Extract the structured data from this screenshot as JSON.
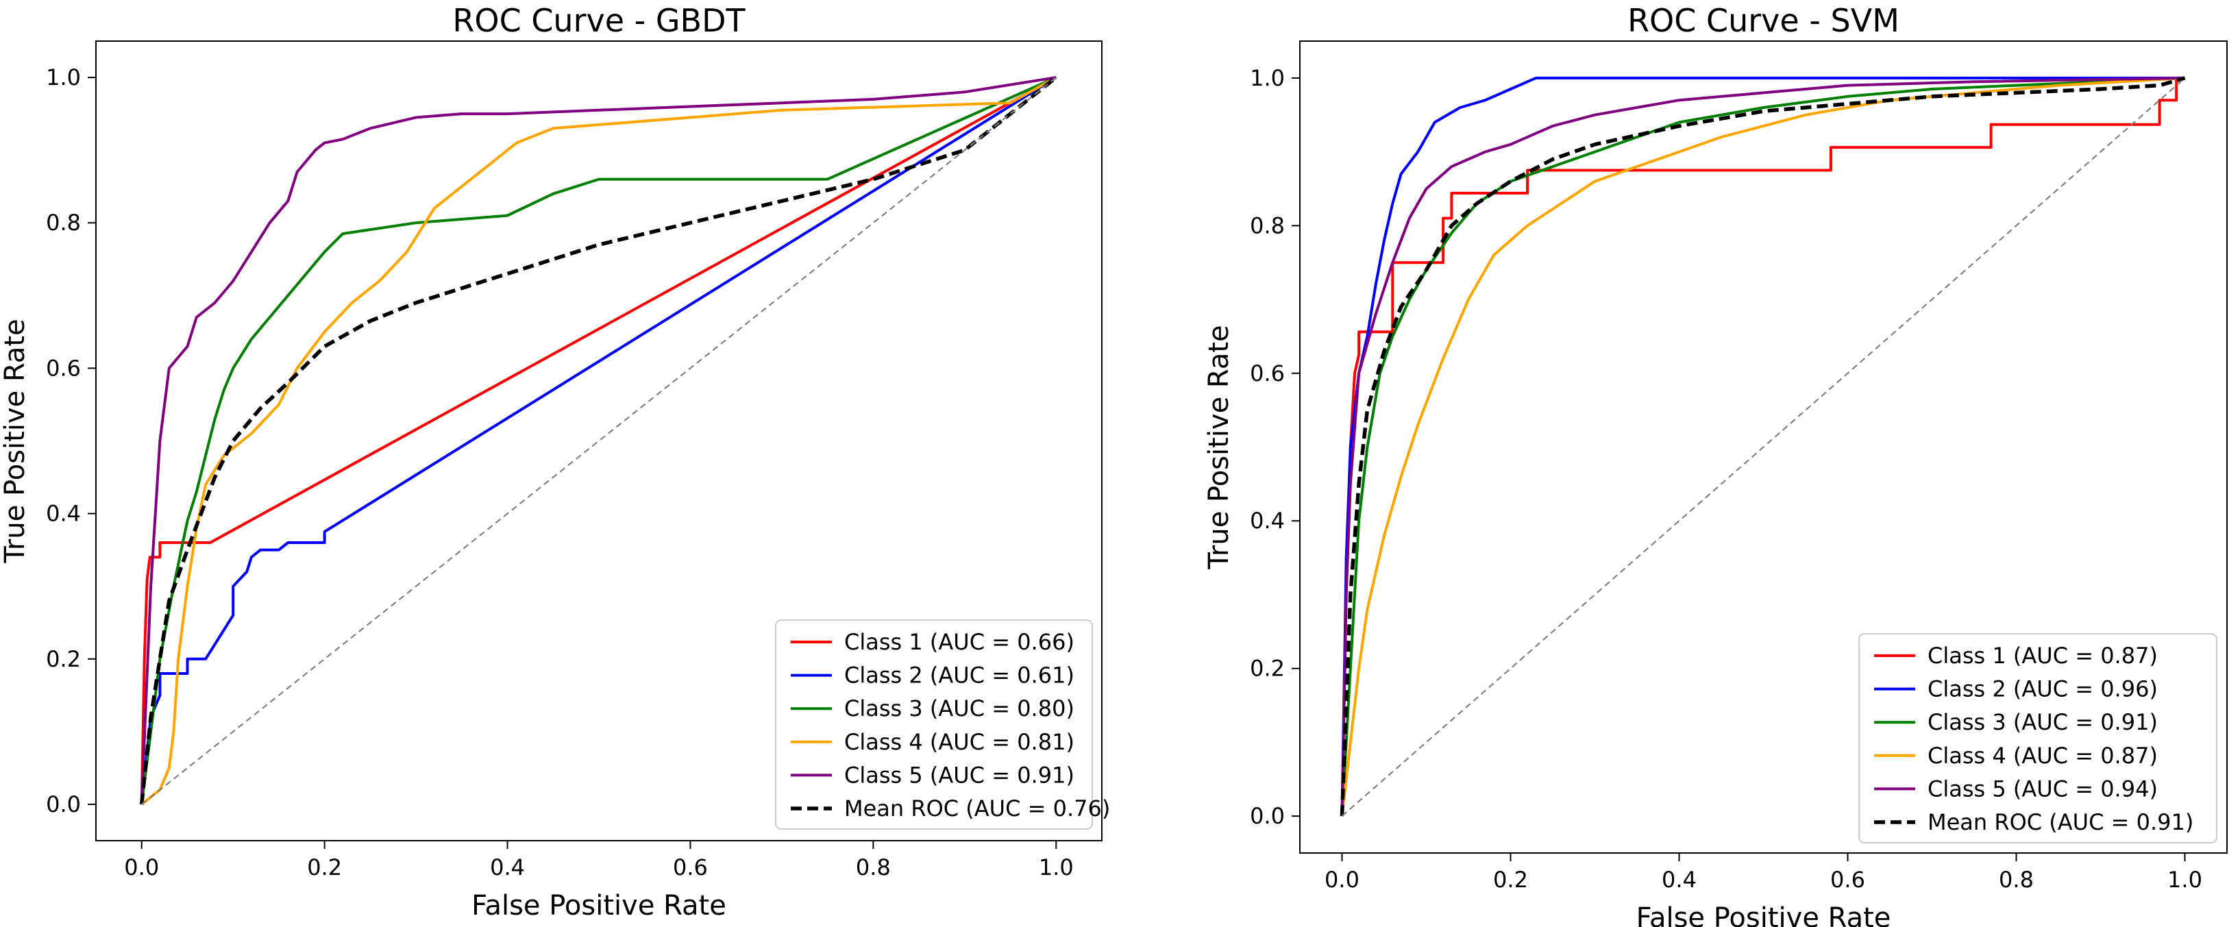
{
  "chart_data": [
    {
      "type": "line",
      "title": "ROC Curve - GBDT",
      "xlabel": "False Positive Rate",
      "ylabel": "True Positive Rate",
      "xlim": [
        -0.05,
        1.05
      ],
      "ylim": [
        -0.05,
        1.05
      ],
      "xticks": [
        "0.0",
        "0.2",
        "0.4",
        "0.6",
        "0.8",
        "1.0"
      ],
      "yticks": [
        "0.0",
        "0.2",
        "0.4",
        "0.6",
        "0.8",
        "1.0"
      ],
      "grid": false,
      "legend_position": "lower-right",
      "series": [
        {
          "name": "Class 1 (AUC = 0.66)",
          "color": "#ff0000",
          "style": "solid",
          "points": [
            [
              0,
              0
            ],
            [
              0.003,
              0.2
            ],
            [
              0.006,
              0.31
            ],
            [
              0.009,
              0.34
            ],
            [
              0.02,
              0.34
            ],
            [
              0.02,
              0.36
            ],
            [
              0.075,
              0.36
            ],
            [
              1.0,
              1.0
            ]
          ]
        },
        {
          "name": "Class 2 (AUC = 0.61)",
          "color": "#0000ff",
          "style": "solid",
          "points": [
            [
              0,
              0
            ],
            [
              0.01,
              0.12
            ],
            [
              0.02,
              0.15
            ],
            [
              0.02,
              0.18
            ],
            [
              0.05,
              0.18
            ],
            [
              0.05,
              0.2
            ],
            [
              0.07,
              0.2
            ],
            [
              0.08,
              0.22
            ],
            [
              0.09,
              0.24
            ],
            [
              0.1,
              0.26
            ],
            [
              0.1,
              0.3
            ],
            [
              0.115,
              0.32
            ],
            [
              0.12,
              0.34
            ],
            [
              0.13,
              0.35
            ],
            [
              0.15,
              0.35
            ],
            [
              0.16,
              0.36
            ],
            [
              0.2,
              0.36
            ],
            [
              0.2,
              0.375
            ],
            [
              1.0,
              1.0
            ]
          ]
        },
        {
          "name": "Class 3 (AUC = 0.80)",
          "color": "#008000",
          "style": "solid",
          "points": [
            [
              0,
              0
            ],
            [
              0.01,
              0.1
            ],
            [
              0.02,
              0.2
            ],
            [
              0.035,
              0.3
            ],
            [
              0.05,
              0.39
            ],
            [
              0.06,
              0.43
            ],
            [
              0.07,
              0.48
            ],
            [
              0.08,
              0.53
            ],
            [
              0.09,
              0.57
            ],
            [
              0.1,
              0.6
            ],
            [
              0.12,
              0.64
            ],
            [
              0.14,
              0.67
            ],
            [
              0.16,
              0.7
            ],
            [
              0.18,
              0.73
            ],
            [
              0.2,
              0.76
            ],
            [
              0.22,
              0.785
            ],
            [
              0.3,
              0.8
            ],
            [
              0.4,
              0.81
            ],
            [
              0.45,
              0.84
            ],
            [
              0.5,
              0.86
            ],
            [
              0.75,
              0.86
            ],
            [
              1.0,
              1.0
            ]
          ]
        },
        {
          "name": "Class 4 (AUC = 0.81)",
          "color": "#ffa500",
          "style": "solid",
          "points": [
            [
              0,
              0
            ],
            [
              0.02,
              0.02
            ],
            [
              0.03,
              0.05
            ],
            [
              0.035,
              0.1
            ],
            [
              0.04,
              0.2
            ],
            [
              0.05,
              0.3
            ],
            [
              0.06,
              0.38
            ],
            [
              0.07,
              0.44
            ],
            [
              0.09,
              0.48
            ],
            [
              0.12,
              0.51
            ],
            [
              0.15,
              0.55
            ],
            [
              0.17,
              0.6
            ],
            [
              0.2,
              0.65
            ],
            [
              0.23,
              0.69
            ],
            [
              0.26,
              0.72
            ],
            [
              0.29,
              0.76
            ],
            [
              0.32,
              0.82
            ],
            [
              0.35,
              0.85
            ],
            [
              0.38,
              0.88
            ],
            [
              0.41,
              0.91
            ],
            [
              0.45,
              0.93
            ],
            [
              0.5,
              0.935
            ],
            [
              0.6,
              0.945
            ],
            [
              0.7,
              0.955
            ],
            [
              0.95,
              0.965
            ],
            [
              1.0,
              1.0
            ]
          ]
        },
        {
          "name": "Class 5 (AUC = 0.91)",
          "color": "#800080",
          "style": "solid",
          "points": [
            [
              0,
              0
            ],
            [
              0.01,
              0.3
            ],
            [
              0.02,
              0.5
            ],
            [
              0.03,
              0.6
            ],
            [
              0.05,
              0.63
            ],
            [
              0.06,
              0.67
            ],
            [
              0.08,
              0.69
            ],
            [
              0.1,
              0.72
            ],
            [
              0.12,
              0.76
            ],
            [
              0.14,
              0.8
            ],
            [
              0.16,
              0.83
            ],
            [
              0.17,
              0.87
            ],
            [
              0.19,
              0.9
            ],
            [
              0.2,
              0.91
            ],
            [
              0.22,
              0.915
            ],
            [
              0.25,
              0.93
            ],
            [
              0.3,
              0.945
            ],
            [
              0.35,
              0.95
            ],
            [
              0.4,
              0.95
            ],
            [
              0.5,
              0.955
            ],
            [
              0.6,
              0.96
            ],
            [
              0.7,
              0.965
            ],
            [
              0.8,
              0.97
            ],
            [
              0.9,
              0.98
            ],
            [
              1.0,
              1.0
            ]
          ]
        },
        {
          "name": "Mean ROC (AUC = 0.76)",
          "color": "#000000",
          "style": "dashed",
          "points": [
            [
              0,
              0
            ],
            [
              0.01,
              0.12
            ],
            [
              0.02,
              0.2
            ],
            [
              0.03,
              0.28
            ],
            [
              0.05,
              0.35
            ],
            [
              0.08,
              0.45
            ],
            [
              0.1,
              0.5
            ],
            [
              0.13,
              0.545
            ],
            [
              0.16,
              0.58
            ],
            [
              0.2,
              0.63
            ],
            [
              0.25,
              0.665
            ],
            [
              0.3,
              0.69
            ],
            [
              0.35,
              0.71
            ],
            [
              0.4,
              0.73
            ],
            [
              0.45,
              0.75
            ],
            [
              0.5,
              0.77
            ],
            [
              0.6,
              0.8
            ],
            [
              0.7,
              0.83
            ],
            [
              0.8,
              0.86
            ],
            [
              0.9,
              0.9
            ],
            [
              1.0,
              1.0
            ]
          ]
        },
        {
          "name": "",
          "color": "#808080",
          "style": "dashed",
          "points": [
            [
              0,
              0
            ],
            [
              1,
              1
            ]
          ]
        }
      ]
    },
    {
      "type": "line",
      "title": "ROC Curve - SVM",
      "xlabel": "False Positive Rate",
      "ylabel": "True Positive Rate",
      "xlim": [
        -0.05,
        1.05
      ],
      "ylim": [
        -0.05,
        1.05
      ],
      "xticks": [
        "0.0",
        "0.2",
        "0.4",
        "0.6",
        "0.8",
        "1.0"
      ],
      "yticks": [
        "0.0",
        "0.2",
        "0.4",
        "0.6",
        "0.8",
        "1.0"
      ],
      "grid": false,
      "legend_position": "lower-right",
      "series": [
        {
          "name": "Class 1 (AUC = 0.87)",
          "color": "#ff0000",
          "style": "solid",
          "points": [
            [
              0,
              0
            ],
            [
              0.005,
              0.3
            ],
            [
              0.01,
              0.5
            ],
            [
              0.015,
              0.6
            ],
            [
              0.02,
              0.625
            ],
            [
              0.02,
              0.656
            ],
            [
              0.06,
              0.656
            ],
            [
              0.06,
              0.75
            ],
            [
              0.12,
              0.75
            ],
            [
              0.12,
              0.81
            ],
            [
              0.13,
              0.81
            ],
            [
              0.13,
              0.844
            ],
            [
              0.22,
              0.844
            ],
            [
              0.22,
              0.875
            ],
            [
              0.58,
              0.875
            ],
            [
              0.58,
              0.906
            ],
            [
              0.77,
              0.906
            ],
            [
              0.77,
              0.937
            ],
            [
              0.97,
              0.937
            ],
            [
              0.97,
              0.97
            ],
            [
              0.99,
              0.97
            ],
            [
              0.99,
              1.0
            ],
            [
              1.0,
              1.0
            ]
          ]
        },
        {
          "name": "Class 2 (AUC = 0.96)",
          "color": "#0000ff",
          "style": "solid",
          "points": [
            [
              0,
              0
            ],
            [
              0.005,
              0.35
            ],
            [
              0.01,
              0.5
            ],
            [
              0.02,
              0.6
            ],
            [
              0.03,
              0.65
            ],
            [
              0.04,
              0.72
            ],
            [
              0.05,
              0.78
            ],
            [
              0.06,
              0.83
            ],
            [
              0.07,
              0.87
            ],
            [
              0.09,
              0.9
            ],
            [
              0.11,
              0.94
            ],
            [
              0.14,
              0.96
            ],
            [
              0.17,
              0.97
            ],
            [
              0.2,
              0.985
            ],
            [
              0.23,
              1.0
            ],
            [
              1.0,
              1.0
            ]
          ]
        },
        {
          "name": "Class 3 (AUC = 0.91)",
          "color": "#008000",
          "style": "solid",
          "points": [
            [
              0,
              0
            ],
            [
              0.01,
              0.2
            ],
            [
              0.02,
              0.4
            ],
            [
              0.03,
              0.5
            ],
            [
              0.045,
              0.6
            ],
            [
              0.06,
              0.65
            ],
            [
              0.08,
              0.7
            ],
            [
              0.1,
              0.74
            ],
            [
              0.13,
              0.79
            ],
            [
              0.16,
              0.83
            ],
            [
              0.2,
              0.86
            ],
            [
              0.25,
              0.88
            ],
            [
              0.3,
              0.9
            ],
            [
              0.4,
              0.94
            ],
            [
              0.5,
              0.96
            ],
            [
              0.6,
              0.975
            ],
            [
              0.7,
              0.985
            ],
            [
              0.8,
              0.99
            ],
            [
              1.0,
              1.0
            ]
          ]
        },
        {
          "name": "Class 4 (AUC = 0.87)",
          "color": "#ffa500",
          "style": "solid",
          "points": [
            [
              0,
              0
            ],
            [
              0.01,
              0.1
            ],
            [
              0.02,
              0.2
            ],
            [
              0.03,
              0.28
            ],
            [
              0.05,
              0.38
            ],
            [
              0.07,
              0.46
            ],
            [
              0.09,
              0.53
            ],
            [
              0.12,
              0.62
            ],
            [
              0.15,
              0.7
            ],
            [
              0.18,
              0.76
            ],
            [
              0.22,
              0.8
            ],
            [
              0.26,
              0.83
            ],
            [
              0.3,
              0.86
            ],
            [
              0.35,
              0.88
            ],
            [
              0.4,
              0.9
            ],
            [
              0.45,
              0.92
            ],
            [
              0.55,
              0.95
            ],
            [
              0.65,
              0.97
            ],
            [
              0.75,
              0.98
            ],
            [
              0.85,
              0.99
            ],
            [
              1.0,
              1.0
            ]
          ]
        },
        {
          "name": "Class 5 (AUC = 0.94)",
          "color": "#800080",
          "style": "solid",
          "points": [
            [
              0,
              0
            ],
            [
              0.005,
              0.3
            ],
            [
              0.01,
              0.45
            ],
            [
              0.02,
              0.6
            ],
            [
              0.04,
              0.68
            ],
            [
              0.06,
              0.75
            ],
            [
              0.08,
              0.81
            ],
            [
              0.1,
              0.85
            ],
            [
              0.13,
              0.88
            ],
            [
              0.17,
              0.9
            ],
            [
              0.2,
              0.91
            ],
            [
              0.25,
              0.935
            ],
            [
              0.3,
              0.95
            ],
            [
              0.4,
              0.97
            ],
            [
              0.5,
              0.98
            ],
            [
              0.6,
              0.99
            ],
            [
              0.75,
              0.995
            ],
            [
              1.0,
              1.0
            ]
          ]
        },
        {
          "name": "Mean ROC (AUC = 0.91)",
          "color": "#000000",
          "style": "dashed",
          "points": [
            [
              0,
              0
            ],
            [
              0.01,
              0.3
            ],
            [
              0.02,
              0.45
            ],
            [
              0.03,
              0.55
            ],
            [
              0.05,
              0.63
            ],
            [
              0.07,
              0.69
            ],
            [
              0.1,
              0.74
            ],
            [
              0.13,
              0.8
            ],
            [
              0.16,
              0.83
            ],
            [
              0.2,
              0.86
            ],
            [
              0.25,
              0.89
            ],
            [
              0.3,
              0.91
            ],
            [
              0.4,
              0.935
            ],
            [
              0.5,
              0.955
            ],
            [
              0.6,
              0.965
            ],
            [
              0.7,
              0.975
            ],
            [
              0.8,
              0.98
            ],
            [
              0.9,
              0.985
            ],
            [
              0.97,
              0.99
            ],
            [
              1.0,
              1.0
            ]
          ]
        },
        {
          "name": "",
          "color": "#808080",
          "style": "dashed",
          "points": [
            [
              0,
              0
            ],
            [
              1,
              1
            ]
          ]
        }
      ]
    }
  ]
}
